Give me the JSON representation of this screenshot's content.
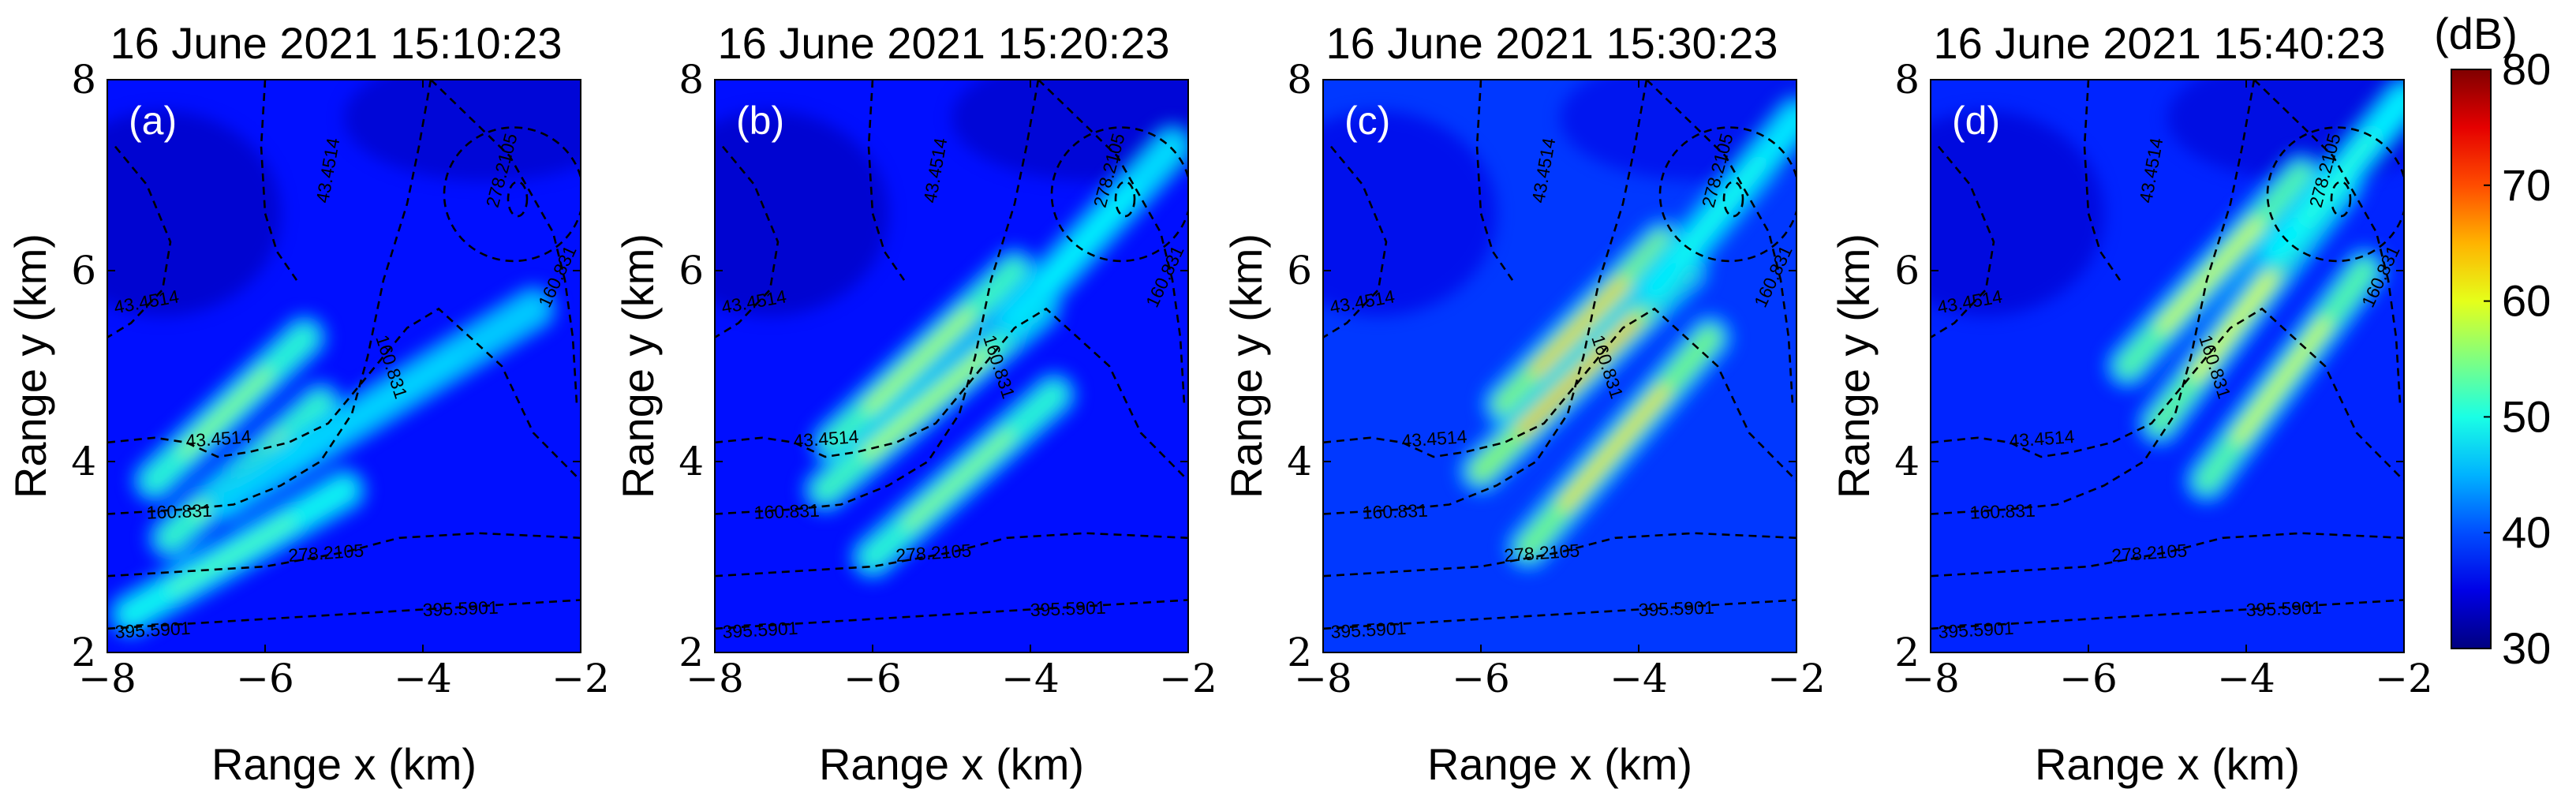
{
  "chart_data": {
    "type": "heatmap",
    "colormap": "jet",
    "colorbar": {
      "unit": "(dB)",
      "range": [
        30,
        80
      ],
      "ticks": [
        30,
        40,
        50,
        60,
        70,
        80
      ]
    },
    "xlabel": "Range x (km)",
    "ylabel": "Range y (km)",
    "xlim": [
      -8,
      -2
    ],
    "ylim": [
      2,
      8
    ],
    "xticks": [
      -8,
      -6,
      -4,
      -2
    ],
    "yticks": [
      2,
      4,
      6,
      8
    ],
    "contour_levels": [
      "43.4514",
      "160.831",
      "278.2105",
      "395.5901"
    ],
    "panels": [
      {
        "label": "(a)",
        "title": "16 June 2021 15:10:23",
        "background_db": 37,
        "bands": [
          {
            "x0": -7.4,
            "y0": 3.8,
            "x1": -5.5,
            "y1": 5.3,
            "peak_db": 56
          },
          {
            "x0": -7.2,
            "y0": 3.2,
            "x1": -5.3,
            "y1": 4.6,
            "peak_db": 57
          },
          {
            "x0": -7.7,
            "y0": 2.4,
            "x1": -5.0,
            "y1": 3.7,
            "peak_db": 53
          },
          {
            "x0": -6.5,
            "y0": 3.6,
            "x1": -2.6,
            "y1": 5.6,
            "peak_db": 47
          }
        ]
      },
      {
        "label": "(b)",
        "title": "16 June 2021 15:20:23",
        "background_db": 37,
        "bands": [
          {
            "x0": -6.5,
            "y0": 4.2,
            "x1": -4.2,
            "y1": 6.0,
            "peak_db": 58
          },
          {
            "x0": -6.6,
            "y0": 3.7,
            "x1": -3.9,
            "y1": 5.6,
            "peak_db": 58
          },
          {
            "x0": -6.0,
            "y0": 3.0,
            "x1": -3.7,
            "y1": 4.7,
            "peak_db": 56
          },
          {
            "x0": -4.2,
            "y0": 5.5,
            "x1": -2.2,
            "y1": 7.3,
            "peak_db": 49
          }
        ]
      },
      {
        "label": "(c)",
        "title": "16 June 2021 15:30:23",
        "background_db": 39,
        "bands": [
          {
            "x0": -5.7,
            "y0": 4.6,
            "x1": -3.7,
            "y1": 6.3,
            "peak_db": 64
          },
          {
            "x0": -6.0,
            "y0": 3.9,
            "x1": -3.4,
            "y1": 6.0,
            "peak_db": 65
          },
          {
            "x0": -5.4,
            "y0": 3.1,
            "x1": -3.1,
            "y1": 5.3,
            "peak_db": 63
          },
          {
            "x0": -3.8,
            "y0": 5.8,
            "x1": -2.0,
            "y1": 7.6,
            "peak_db": 50
          }
        ]
      },
      {
        "label": "(d)",
        "title": "16 June 2021 15:40:23",
        "background_db": 38,
        "bands": [
          {
            "x0": -5.5,
            "y0": 5.0,
            "x1": -3.3,
            "y1": 7.0,
            "peak_db": 60
          },
          {
            "x0": -5.1,
            "y0": 4.4,
            "x1": -2.8,
            "y1": 6.9,
            "peak_db": 61
          },
          {
            "x0": -4.5,
            "y0": 3.8,
            "x1": -2.5,
            "y1": 6.0,
            "peak_db": 60
          },
          {
            "x0": -3.6,
            "y0": 6.2,
            "x1": -2.0,
            "y1": 7.8,
            "peak_db": 51
          }
        ]
      }
    ]
  }
}
